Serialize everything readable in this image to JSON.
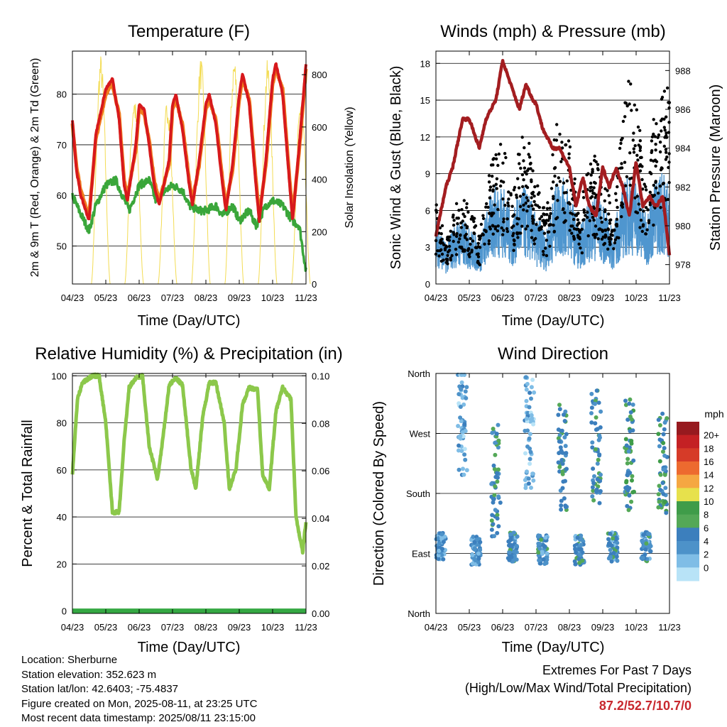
{
  "colors": {
    "temp2m": "#d7191c",
    "temp9m": "#f07d1e",
    "dewpoint": "#3aa63a",
    "solar": "#f3dc54",
    "wind": "#4f96cf",
    "gust": "#000000",
    "pressure": "#a31d20",
    "rh": "#8cc84b",
    "precip": "#35a843"
  },
  "info": {
    "location": "Location: Sherburne",
    "elevation": "Station elevation: 352.623 m",
    "latlon": "Station lat/lon: 42.6403; -75.4837",
    "created": "Figure created on Mon, 2025-08-11, at 23:25 UTC",
    "recent": "Most recent data timestamp: 2025/08/11 23:15:00"
  },
  "extremes": {
    "title": "Extremes For Past 7 Days",
    "subtitle": "(High/Low/Max Wind/Total Precipitation)",
    "values": "87.2/52.7/10.7/0"
  },
  "chart_data": [
    {
      "type": "line",
      "title": "Temperature (F)",
      "xlabel": "Time (Day/UTC)",
      "ylabel": "2m & 9m T (Red, Orange) & 2m Td (Green)",
      "y2label": "Solar Insolation (Yellow)",
      "x_ticks": [
        "04/23",
        "05/23",
        "06/23",
        "07/23",
        "08/23",
        "09/23",
        "10/23",
        "11/23"
      ],
      "ylim": [
        42.5,
        88.5
      ],
      "yticks": [
        50,
        60,
        70,
        80
      ],
      "y2lim": [
        0,
        890
      ],
      "y2ticks": [
        0,
        200,
        400,
        600,
        800
      ],
      "grid": true,
      "series": [
        {
          "name": "2m T",
          "axis": "left",
          "x": [
            4,
            4.12,
            4.25,
            4.5,
            4.7,
            5,
            5.2,
            5.4,
            5.55,
            5.65,
            5.9,
            6,
            6.15,
            6.3,
            6.45,
            6.6,
            6.9,
            7,
            7.1,
            7.3,
            7.5,
            7.6,
            7.8,
            8,
            8.1,
            8.3,
            8.5,
            8.6,
            8.8,
            9,
            9.1,
            9.3,
            9.5,
            9.6,
            9.8,
            10,
            10.1,
            10.3,
            10.5,
            10.6,
            10.8,
            11
          ],
          "y": [
            75,
            65,
            60,
            55,
            72,
            81,
            83,
            75,
            62,
            59,
            70,
            78,
            77,
            70,
            62,
            58,
            67,
            78,
            80,
            73,
            62,
            58,
            67,
            78,
            80,
            74,
            62,
            57,
            66,
            80,
            84,
            78,
            62,
            55,
            67,
            83,
            86,
            80,
            63,
            55,
            70,
            86
          ]
        },
        {
          "name": "9m T",
          "axis": "left",
          "x": [
            4,
            4.12,
            4.25,
            4.5,
            4.7,
            5,
            5.2,
            5.4,
            5.55,
            5.65,
            5.9,
            6,
            6.15,
            6.3,
            6.45,
            6.6,
            6.9,
            7,
            7.1,
            7.3,
            7.5,
            7.6,
            7.8,
            8,
            8.1,
            8.3,
            8.5,
            8.6,
            8.8,
            9,
            9.1,
            9.3,
            9.5,
            9.6,
            9.8,
            10,
            10.1,
            10.3,
            10.5,
            10.6,
            10.8,
            11
          ],
          "y": [
            74,
            66,
            61,
            56,
            71,
            80,
            82,
            76,
            63,
            60,
            69,
            77,
            76,
            71,
            63,
            59,
            66,
            77,
            79,
            74,
            63,
            59,
            66,
            77,
            79,
            75,
            63,
            58,
            65,
            79,
            83,
            79,
            63,
            56,
            66,
            82,
            85,
            81,
            64,
            56,
            69,
            85
          ]
        },
        {
          "name": "2m Td",
          "axis": "left",
          "x": [
            4,
            4.2,
            4.5,
            4.7,
            5,
            5.3,
            5.5,
            5.7,
            6,
            6.3,
            6.5,
            6.8,
            7,
            7.3,
            7.5,
            7.8,
            8,
            8.3,
            8.5,
            8.8,
            9,
            9.3,
            9.5,
            9.8,
            10,
            10.3,
            10.6,
            10.8,
            11
          ],
          "y": [
            60,
            57,
            53,
            58,
            62,
            63,
            60,
            57,
            62,
            63,
            59,
            61,
            62,
            61,
            58,
            57,
            57,
            58,
            56,
            58,
            55,
            57,
            54,
            58,
            59,
            58,
            55,
            54,
            45
          ]
        },
        {
          "name": "Solar Insolation",
          "axis": "right",
          "peak_x": [
            4.85,
            5.85,
            6.85,
            7.85,
            8.85,
            9.85,
            10.85
          ],
          "peaks": [
            880,
            730,
            720,
            870,
            880,
            860,
            730
          ]
        }
      ]
    },
    {
      "type": "scatter",
      "title": "Winds (mph) & Pressure (mb)",
      "xlabel": "Time (Day/UTC)",
      "ylabel": "Sonic Wind & Gust (Blue, Black)",
      "y2label": "Station Pressure (Maroon)",
      "x_ticks": [
        "04/23",
        "05/23",
        "06/23",
        "07/23",
        "08/23",
        "09/23",
        "10/23",
        "11/23"
      ],
      "ylim": [
        0,
        19
      ],
      "yticks": [
        0,
        3,
        6,
        9,
        12,
        15,
        18
      ],
      "y2lim": [
        977,
        989
      ],
      "y2ticks": [
        978,
        980,
        982,
        984,
        986,
        988
      ],
      "grid": true,
      "series": [
        {
          "name": "Pressure",
          "axis": "right",
          "x": [
            4,
            4.3,
            4.5,
            4.8,
            5,
            5.3,
            5.5,
            5.8,
            6,
            6.2,
            6.5,
            6.7,
            6.9,
            7,
            7.2,
            7.5,
            7.7,
            8,
            8.2,
            8.4,
            8.6,
            8.8,
            9,
            9.2,
            9.4,
            9.6,
            9.8,
            10,
            10.2,
            10.4,
            10.6,
            10.8,
            11
          ],
          "y": [
            979.5,
            982,
            983,
            985.5,
            985.5,
            984,
            985.5,
            986.5,
            988.5,
            987.5,
            986,
            987.3,
            986.5,
            986.3,
            985,
            984,
            984,
            983,
            981,
            982.5,
            981,
            980.5,
            983,
            982,
            983,
            982,
            980.5,
            983.3,
            981,
            981.5,
            981,
            981.5,
            978.5
          ]
        },
        {
          "name": "Sonic Wind",
          "axis": "left",
          "daily_peak_x": [
            4.3,
            5,
            5.7,
            6.4,
            7,
            7.6,
            8.3,
            9,
            9.7,
            10.3,
            11
          ],
          "daily_peak": [
            6,
            5,
            8,
            10,
            6,
            9,
            8,
            7,
            9,
            10,
            9
          ]
        },
        {
          "name": "Gust",
          "axis": "left",
          "daily_peak_x": [
            4.3,
            5,
            5.7,
            6.4,
            7,
            7.6,
            8.3,
            9,
            9.7,
            10.3,
            11
          ],
          "daily_peak": [
            7.5,
            7,
            10.5,
            15.5,
            9.5,
            15,
            12.5,
            9.5,
            16.5,
            17,
            17
          ]
        }
      ]
    },
    {
      "type": "line",
      "title": "Relative Humidity (%) & Precipitation (in)",
      "xlabel": "Time (Day/UTC)",
      "ylabel": "Percent & Total Rainfall",
      "x_ticks": [
        "04/23",
        "05/23",
        "06/23",
        "07/23",
        "08/23",
        "09/23",
        "10/23",
        "11/23"
      ],
      "ylim": [
        -1,
        101
      ],
      "yticks": [
        0,
        20,
        40,
        60,
        80,
        100
      ],
      "y2lim": [
        0,
        0.101
      ],
      "y2ticks": [
        "0.00",
        "0.02",
        "0.04",
        "0.06",
        "0.08",
        "0.10"
      ],
      "grid": true,
      "series": [
        {
          "name": "RH",
          "axis": "left",
          "x": [
            4,
            4.15,
            4.3,
            4.6,
            4.8,
            5,
            5.2,
            5.4,
            5.55,
            5.7,
            5.9,
            6.1,
            6.3,
            6.55,
            6.7,
            6.9,
            7.1,
            7.3,
            7.55,
            7.7,
            7.9,
            8.1,
            8.3,
            8.55,
            8.7,
            8.9,
            9.1,
            9.3,
            9.55,
            9.7,
            9.9,
            10.1,
            10.3,
            10.55,
            10.7,
            10.9,
            11
          ],
          "y": [
            58,
            90,
            97,
            100,
            100,
            80,
            42,
            42,
            72,
            95,
            99,
            100,
            70,
            56,
            72,
            96,
            99,
            96,
            61,
            52,
            82,
            97,
            97,
            80,
            52,
            60,
            88,
            95,
            94,
            58,
            52,
            85,
            95,
            90,
            40,
            25,
            38
          ]
        },
        {
          "name": "Precipitation",
          "axis": "right",
          "x": [
            4,
            11
          ],
          "y": [
            0,
            0
          ]
        }
      ]
    },
    {
      "type": "scatter",
      "title": "Wind Direction",
      "xlabel": "Time (Day/UTC)",
      "ylabel": "Direction (Colored By Speed)",
      "x_ticks": [
        "04/23",
        "05/23",
        "06/23",
        "07/23",
        "08/23",
        "09/23",
        "10/23",
        "11/23"
      ],
      "ylim": [
        0,
        360
      ],
      "yticks": [
        "North",
        "East",
        "South",
        "West",
        "North"
      ],
      "ytick_values": [
        0,
        90,
        180,
        270,
        360
      ],
      "grid": true,
      "colorbar": {
        "title": "mph",
        "labels": [
          "0",
          "2",
          "4",
          "6",
          "8",
          "10",
          "12",
          "14",
          "16",
          "18",
          "20+"
        ],
        "colors": [
          "#b8e3f7",
          "#7fbde6",
          "#4d92c9",
          "#3c7fbd",
          "#54a857",
          "#3f9c49",
          "#e7e14c",
          "#f5a742",
          "#ed6a2f",
          "#d63b28",
          "#c42124",
          "#971a1f"
        ]
      },
      "clusters": [
        {
          "x": 4.15,
          "dir": 100,
          "speed": 4
        },
        {
          "x": 4.8,
          "dir": 290,
          "speed": 3
        },
        {
          "x": 5.2,
          "dir": 95,
          "speed": 4
        },
        {
          "x": 5.8,
          "dir": 200,
          "speed": 6
        },
        {
          "x": 6.3,
          "dir": 100,
          "speed": 5
        },
        {
          "x": 6.8,
          "dir": 270,
          "speed": 3
        },
        {
          "x": 7.2,
          "dir": 95,
          "speed": 5
        },
        {
          "x": 7.8,
          "dir": 240,
          "speed": 6
        },
        {
          "x": 8.3,
          "dir": 95,
          "speed": 5
        },
        {
          "x": 8.8,
          "dir": 250,
          "speed": 6
        },
        {
          "x": 9.3,
          "dir": 100,
          "speed": 5
        },
        {
          "x": 9.8,
          "dir": 240,
          "speed": 7
        },
        {
          "x": 10.3,
          "dir": 100,
          "speed": 5
        },
        {
          "x": 10.8,
          "dir": 230,
          "speed": 7
        }
      ]
    }
  ]
}
